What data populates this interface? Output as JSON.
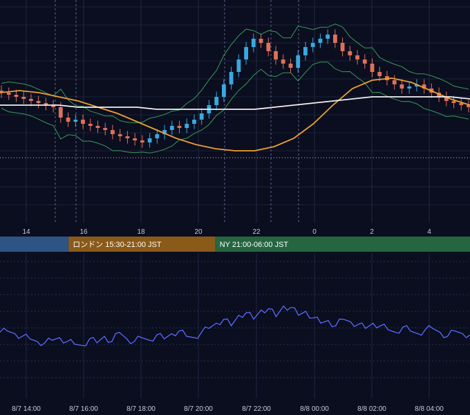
{
  "chart_data": [
    {
      "type": "candlestick",
      "x_ticks": [
        "14",
        "16",
        "18",
        "20",
        "22",
        "0",
        "2",
        "4"
      ],
      "y_range": [
        0,
        100
      ],
      "grid": true,
      "sessions": [
        {
          "label": "",
          "start": 0.0,
          "end": 3.5,
          "color": "#2d5485"
        },
        {
          "label": "ロンドン 15:30-21:00 JST",
          "start": 3.5,
          "end": 11.0,
          "color": "#8a5a18"
        },
        {
          "label": "NY 21:00-06:00 JST",
          "start": 11.0,
          "end": 24.0,
          "color": "#256640"
        }
      ],
      "moving_averages": [
        {
          "color": "#f0a030",
          "values": [
            62,
            63,
            62,
            60,
            58,
            55,
            52,
            48,
            44,
            40,
            37,
            35,
            34,
            34,
            36,
            40,
            47,
            56,
            64,
            68,
            69,
            67,
            63,
            59,
            56
          ]
        },
        {
          "color": "#f2f2f2",
          "values": [
            56,
            56,
            56,
            56,
            55,
            55,
            55,
            55,
            54,
            54,
            54,
            54,
            54,
            54,
            55,
            56,
            57,
            58,
            59,
            60,
            60,
            60,
            60,
            60,
            59
          ]
        }
      ],
      "candles_close": [
        62,
        61,
        60,
        59,
        58,
        57,
        56,
        55,
        50,
        48,
        49,
        47,
        46,
        45,
        44,
        42,
        41,
        40,
        39,
        38,
        40,
        42,
        44,
        46,
        45,
        47,
        49,
        52,
        56,
        60,
        66,
        72,
        78,
        84,
        88,
        86,
        82,
        78,
        76,
        74,
        80,
        84,
        86,
        88,
        90,
        86,
        82,
        80,
        78,
        76,
        72,
        70,
        68,
        66,
        64,
        65,
        66,
        64,
        62,
        60,
        58,
        57,
        56,
        55
      ]
    },
    {
      "type": "line",
      "series": [
        {
          "color": "#5a6aff",
          "values": [
            45,
            46,
            44,
            42,
            40,
            38,
            37,
            39,
            41,
            38,
            36,
            35,
            40,
            37,
            42,
            38,
            45,
            40,
            38,
            41,
            39,
            43,
            40,
            44,
            46,
            42,
            41,
            45,
            48,
            52,
            55,
            50,
            58,
            60,
            55,
            62,
            63,
            57,
            65,
            64,
            58,
            61,
            56,
            52,
            54,
            50,
            55,
            53,
            51,
            48,
            52,
            50,
            47,
            45,
            49,
            46,
            44,
            47,
            48,
            45,
            42,
            46,
            44,
            43
          ]
        }
      ],
      "ylim": [
        0,
        100
      ],
      "grid": true
    }
  ],
  "time_axis_labels": [
    "8/7 14:00",
    "8/7 16:00",
    "8/7 18:00",
    "8/7 20:00",
    "8/7 22:00",
    "8/8 00:00",
    "8/8 02:00",
    "8/8 04:00"
  ]
}
